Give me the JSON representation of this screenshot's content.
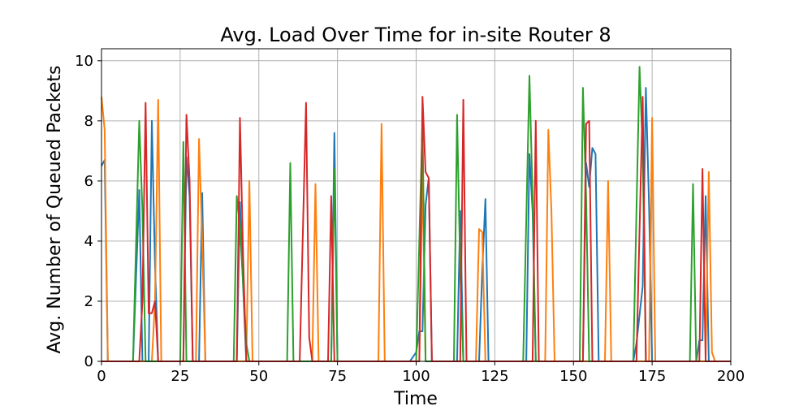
{
  "chart_data": {
    "type": "line",
    "title": "Avg. Load Over Time for in-site Router 8",
    "xlabel": "Time",
    "ylabel": "Avg. Number of Queued Packets",
    "xlim": [
      0,
      200
    ],
    "ylim": [
      0,
      10.4
    ],
    "xticks": [
      0,
      25,
      50,
      75,
      100,
      125,
      150,
      175,
      200
    ],
    "yticks": [
      0,
      2,
      4,
      6,
      8,
      10
    ],
    "grid": true,
    "colors": [
      "#1f77b4",
      "#ff7f0e",
      "#2ca02c",
      "#d62728"
    ],
    "series": [
      {
        "color": "#1f77b4",
        "points": [
          [
            0,
            6.5
          ],
          [
            1,
            6.7
          ],
          [
            2,
            0
          ],
          [
            10,
            0
          ],
          [
            12,
            5.7
          ],
          [
            13,
            0
          ],
          [
            15,
            0
          ],
          [
            16,
            8.0
          ],
          [
            17,
            3.2
          ],
          [
            18,
            0
          ],
          [
            26,
            0
          ],
          [
            27,
            6.8
          ],
          [
            28,
            5.5
          ],
          [
            29,
            0
          ],
          [
            31,
            0
          ],
          [
            32,
            5.6
          ],
          [
            33,
            0
          ],
          [
            43,
            0
          ],
          [
            44,
            5.3
          ],
          [
            45,
            2.5
          ],
          [
            46,
            0
          ],
          [
            73,
            0
          ],
          [
            74,
            7.6
          ],
          [
            75,
            0
          ],
          [
            98,
            0
          ],
          [
            100,
            0.3
          ],
          [
            101,
            1.0
          ],
          [
            102,
            1.0
          ],
          [
            103,
            5.2
          ],
          [
            104,
            6.1
          ],
          [
            105,
            0
          ],
          [
            113,
            0
          ],
          [
            114,
            5.0
          ],
          [
            115,
            0
          ],
          [
            120,
            0
          ],
          [
            121,
            3.0
          ],
          [
            122,
            5.4
          ],
          [
            123,
            0
          ],
          [
            135,
            0
          ],
          [
            136,
            6.9
          ],
          [
            137,
            5.0
          ],
          [
            138,
            0
          ],
          [
            153,
            0
          ],
          [
            154,
            6.6
          ],
          [
            155,
            5.8
          ],
          [
            156,
            7.1
          ],
          [
            157,
            6.9
          ],
          [
            158,
            0
          ],
          [
            169,
            0
          ],
          [
            170,
            0.6
          ],
          [
            172,
            2.5
          ],
          [
            173,
            9.1
          ],
          [
            174,
            5.2
          ],
          [
            175,
            0
          ],
          [
            189,
            0
          ],
          [
            190,
            0.7
          ],
          [
            191,
            0.7
          ],
          [
            192,
            5.5
          ],
          [
            193,
            0
          ]
        ]
      },
      {
        "color": "#ff7f0e",
        "points": [
          [
            0,
            8.8
          ],
          [
            1,
            7.7
          ],
          [
            2,
            0
          ],
          [
            16,
            0
          ],
          [
            17,
            2.0
          ],
          [
            18,
            8.7
          ],
          [
            19,
            0
          ],
          [
            30,
            0
          ],
          [
            31,
            7.4
          ],
          [
            32,
            4.0
          ],
          [
            33,
            0
          ],
          [
            46,
            0
          ],
          [
            47,
            6.0
          ],
          [
            48,
            0
          ],
          [
            67,
            0
          ],
          [
            68,
            5.9
          ],
          [
            69,
            0
          ],
          [
            88,
            0
          ],
          [
            89,
            7.9
          ],
          [
            90,
            0
          ],
          [
            101,
            0
          ],
          [
            102,
            6.3
          ],
          [
            103,
            0
          ],
          [
            119,
            0
          ],
          [
            120,
            4.4
          ],
          [
            121,
            4.3
          ],
          [
            122,
            0
          ],
          [
            141,
            0
          ],
          [
            142,
            7.7
          ],
          [
            143,
            5.0
          ],
          [
            144,
            0
          ],
          [
            160,
            0
          ],
          [
            161,
            6.0
          ],
          [
            162,
            0
          ],
          [
            174,
            0
          ],
          [
            175,
            8.1
          ],
          [
            176,
            0
          ],
          [
            192,
            0
          ],
          [
            193,
            6.3
          ],
          [
            194,
            0.3
          ],
          [
            195,
            0
          ]
        ]
      },
      {
        "color": "#2ca02c",
        "points": [
          [
            0,
            0
          ],
          [
            10,
            0
          ],
          [
            12,
            8.0
          ],
          [
            13,
            5.0
          ],
          [
            14,
            0
          ],
          [
            25,
            0
          ],
          [
            26,
            7.3
          ],
          [
            27,
            0
          ],
          [
            42,
            0
          ],
          [
            43,
            5.5
          ],
          [
            44,
            4.5
          ],
          [
            46,
            0.6
          ],
          [
            47,
            0
          ],
          [
            59,
            0
          ],
          [
            60,
            6.6
          ],
          [
            61,
            0
          ],
          [
            73,
            0
          ],
          [
            74,
            6.4
          ],
          [
            75,
            0
          ],
          [
            100,
            0
          ],
          [
            102,
            8.0
          ],
          [
            103,
            0
          ],
          [
            112,
            0
          ],
          [
            113,
            8.2
          ],
          [
            114,
            3.0
          ],
          [
            115,
            0
          ],
          [
            134,
            0
          ],
          [
            136,
            9.5
          ],
          [
            137,
            5.5
          ],
          [
            138,
            0
          ],
          [
            152,
            0
          ],
          [
            153,
            9.1
          ],
          [
            154,
            5.5
          ],
          [
            155,
            0
          ],
          [
            169,
            0
          ],
          [
            171,
            9.8
          ],
          [
            172,
            7.0
          ],
          [
            173,
            0
          ],
          [
            187,
            0
          ],
          [
            188,
            5.9
          ],
          [
            189,
            0
          ]
        ]
      },
      {
        "color": "#d62728",
        "points": [
          [
            0,
            0
          ],
          [
            12,
            0
          ],
          [
            13,
            2.0
          ],
          [
            14,
            8.6
          ],
          [
            15,
            1.6
          ],
          [
            16,
            1.6
          ],
          [
            17,
            2.0
          ],
          [
            18,
            0
          ],
          [
            26,
            0
          ],
          [
            27,
            8.2
          ],
          [
            28,
            6.0
          ],
          [
            29,
            0
          ],
          [
            43,
            0
          ],
          [
            44,
            8.1
          ],
          [
            45,
            3.5
          ],
          [
            46,
            0
          ],
          [
            63,
            0
          ],
          [
            65,
            8.6
          ],
          [
            66,
            0.8
          ],
          [
            67,
            0
          ],
          [
            72,
            0
          ],
          [
            73,
            5.5
          ],
          [
            74,
            0
          ],
          [
            101,
            0
          ],
          [
            102,
            8.8
          ],
          [
            103,
            6.3
          ],
          [
            104,
            6.1
          ],
          [
            105,
            0
          ],
          [
            114,
            0
          ],
          [
            115,
            8.7
          ],
          [
            116,
            0
          ],
          [
            137,
            0
          ],
          [
            138,
            8.0
          ],
          [
            139,
            0
          ],
          [
            153,
            0
          ],
          [
            154,
            7.9
          ],
          [
            155,
            8.0
          ],
          [
            156,
            0
          ],
          [
            170,
            0
          ],
          [
            172,
            8.8
          ],
          [
            173,
            0
          ],
          [
            190,
            0
          ],
          [
            191,
            6.4
          ],
          [
            192,
            0
          ],
          [
            200,
            0
          ]
        ]
      }
    ]
  }
}
